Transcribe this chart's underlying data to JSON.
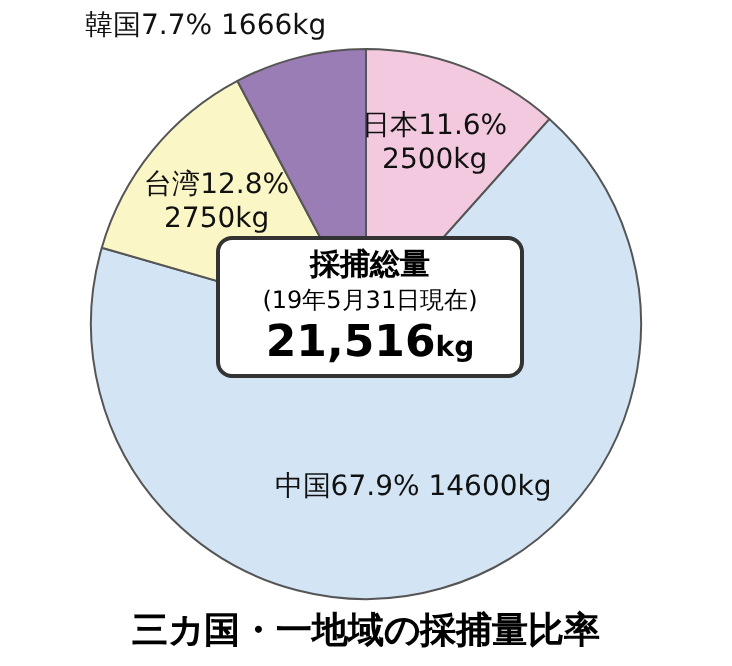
{
  "chart_data": {
    "type": "pie",
    "title": "三カ国・一地域の採捕量比率",
    "categories": [
      "日本",
      "中国",
      "台湾",
      "韓国"
    ],
    "values": [
      2500,
      14600,
      2750,
      1666
    ],
    "value_labels": [
      "11.6%\n2500kg",
      "67.9% 14600kg",
      "12.8%\n2750kg",
      "7.7%\n1666kg"
    ],
    "colors": [
      "#f2c9de",
      "#d3e5f4",
      "#fbf6c6",
      "#9b7db6"
    ],
    "annotations": [
      "採捕総量",
      "(19年5月31日現在)",
      "21,516kg"
    ],
    "legend": false
  }
}
